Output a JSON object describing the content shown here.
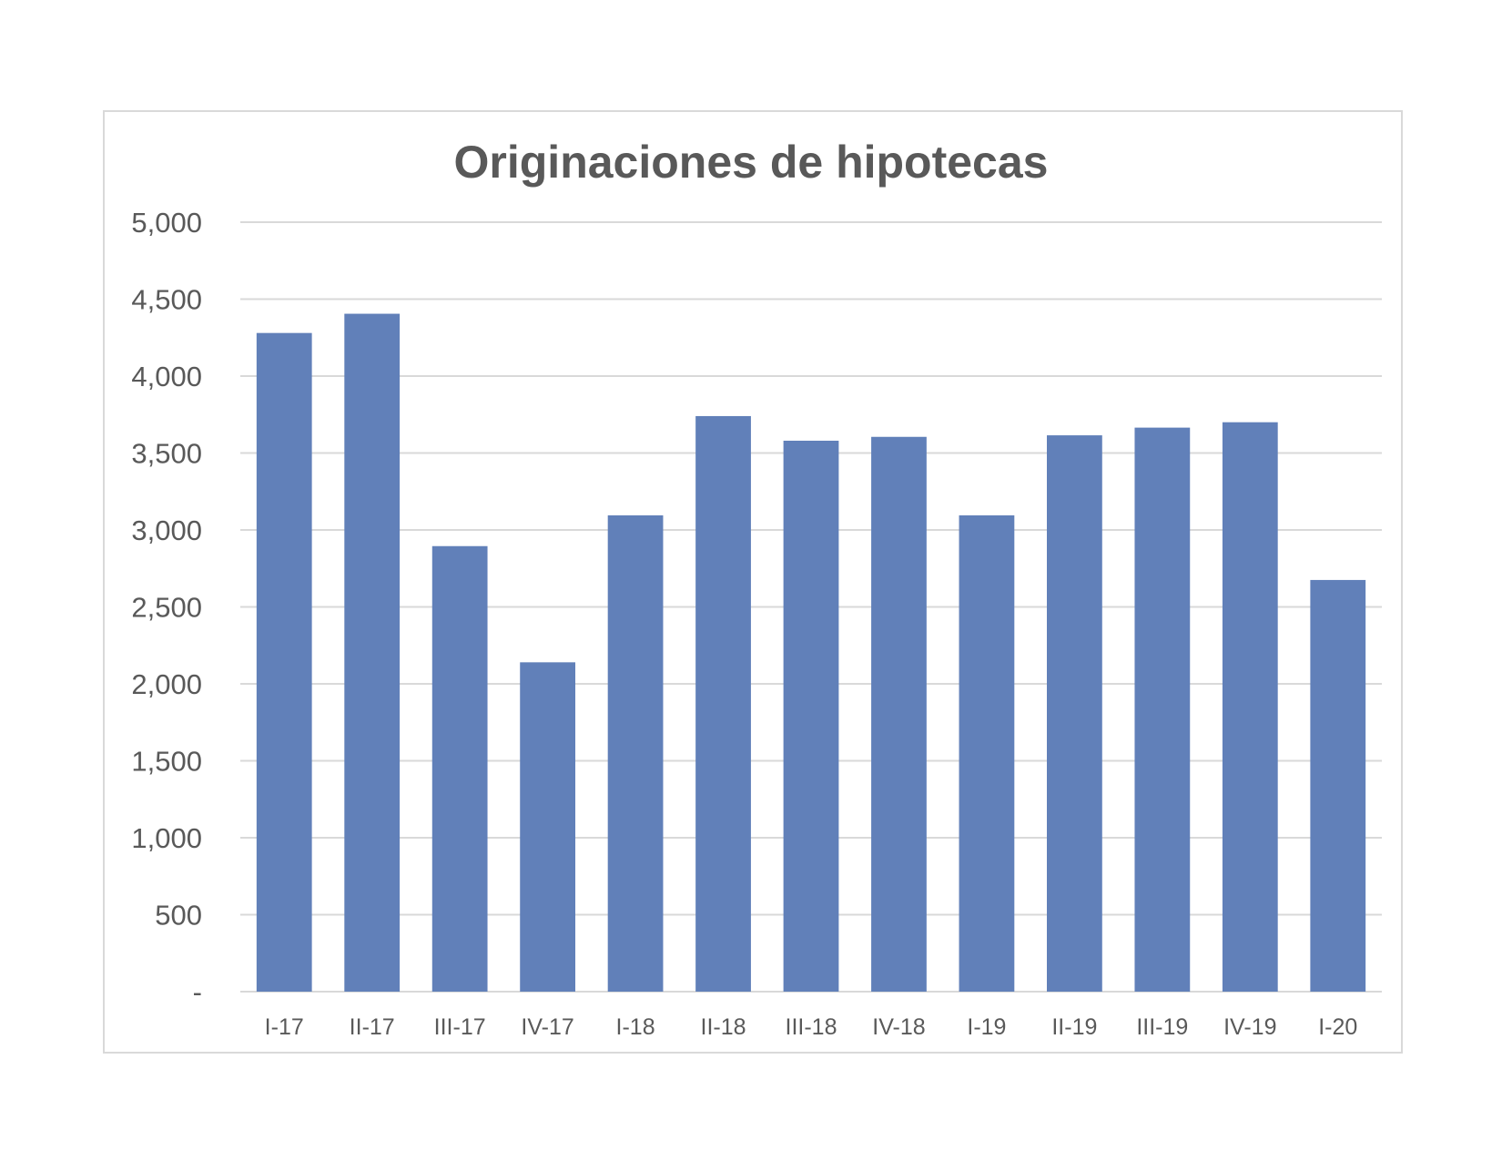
{
  "chart_data": {
    "type": "bar",
    "title": "Originaciones de hipotecas",
    "xlabel": "",
    "ylabel": "",
    "categories": [
      "I-17",
      "II-17",
      "III-17",
      "IV-17",
      "I-18",
      "II-18",
      "III-18",
      "IV-18",
      "I-19",
      "II-19",
      "III-19",
      "IV-19",
      "I-20"
    ],
    "values": [
      4280,
      4405,
      2895,
      2140,
      3095,
      3740,
      3580,
      3605,
      3095,
      3615,
      3665,
      3700,
      2675
    ],
    "ylim": [
      0,
      5000
    ],
    "yticks": [
      0,
      500,
      1000,
      1500,
      2000,
      2500,
      3000,
      3500,
      4000,
      4500,
      5000
    ],
    "ytick_labels": [
      "-",
      "500",
      "1,000",
      "1,500",
      "2,000",
      "2,500",
      "3,000",
      "3,500",
      "4,000",
      "4,500",
      "5,000"
    ],
    "grid": true,
    "legend": "none",
    "bar_color": "#6180b9"
  }
}
